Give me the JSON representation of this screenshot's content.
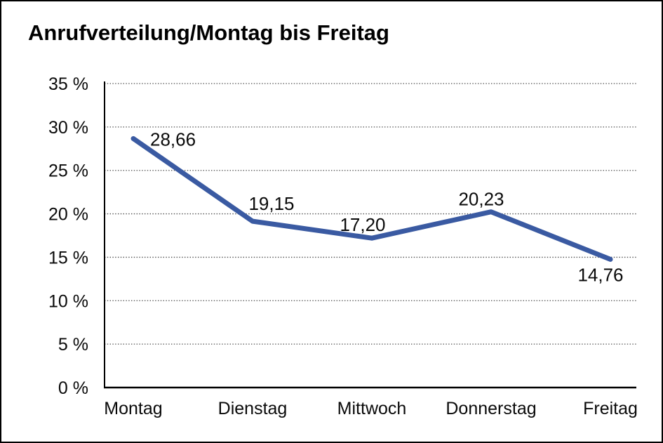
{
  "window": {
    "background_color": "#ffffff",
    "border_color": "#000000"
  },
  "title": "Anrufverteilung/Montag bis Freitag",
  "chart_data": {
    "type": "line",
    "title": "Anrufverteilung/Montag bis Freitag",
    "categories": [
      "Montag",
      "Dienstag",
      "Mittwoch",
      "Donnerstag",
      "Freitag"
    ],
    "values": [
      28.66,
      19.15,
      17.2,
      20.23,
      14.76
    ],
    "point_labels": [
      "28,66",
      "19,15",
      "17,20",
      "20,23",
      "14,76"
    ],
    "y_ticks": [
      35,
      30,
      25,
      20,
      15,
      10,
      5,
      0
    ],
    "y_tick_labels": [
      "35 %",
      "30 %",
      "25 %",
      "20 %",
      "15 %",
      "10 %",
      "5 %",
      "0 %"
    ],
    "ylim": [
      0,
      35
    ],
    "xlabel": "",
    "ylabel": "",
    "grid": "horizontal-dotted",
    "legend": "none",
    "series_name": "Anrufverteilung",
    "colors": {
      "line": "#3A5AA2",
      "text": "#0a0a0a",
      "grid": "#4a4a4a",
      "axis": "#000000"
    }
  }
}
